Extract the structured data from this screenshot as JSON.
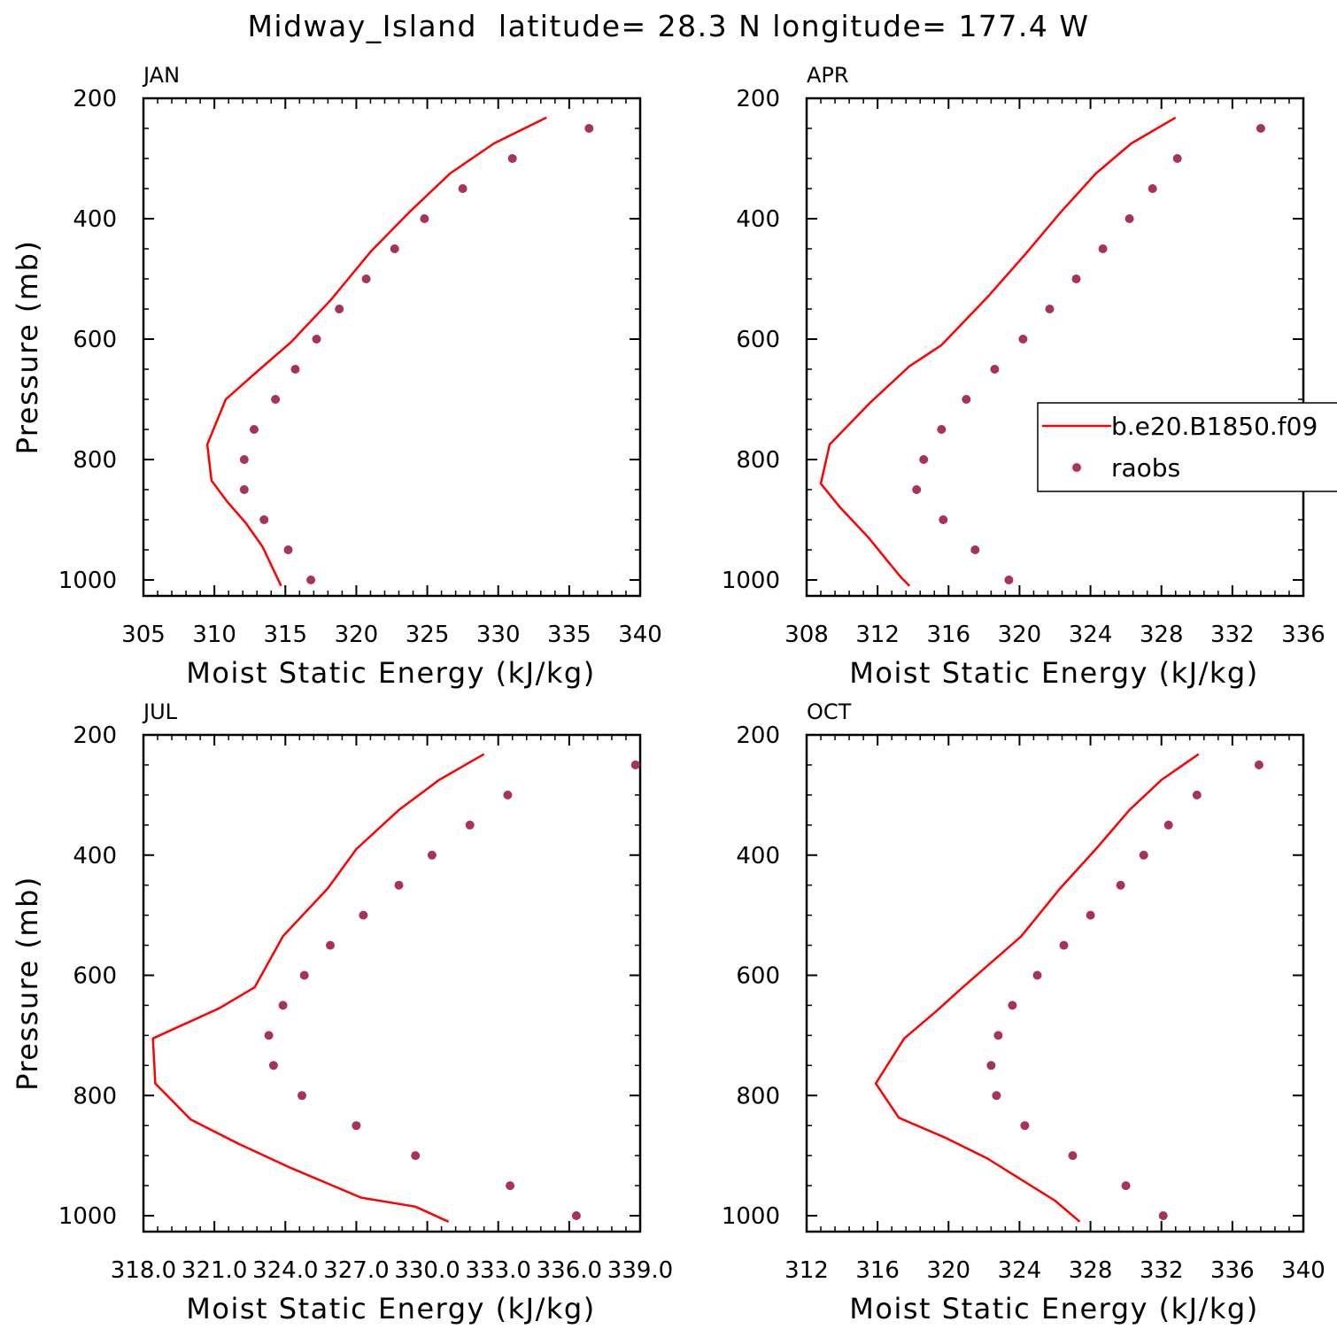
{
  "title": "Midway_Island  latitude= 28.3 N longitude= 177.4 W",
  "colors": {
    "model": "#ff0000",
    "obs": "#a8325e",
    "axis": "#000000"
  },
  "legend": {
    "placement": "right-middle of APR panel",
    "items": [
      "b.e20.B1850.f09",
      "raobs"
    ]
  },
  "chart_data": [
    {
      "type": "line",
      "panel_label": "JAN",
      "xlabel": "Moist Static Energy (kJ/kg)",
      "ylabel": "Pressure (mb)",
      "xlim": [
        305,
        340
      ],
      "xticks": [
        305,
        310,
        315,
        320,
        325,
        330,
        335,
        340
      ],
      "xticklabels": [
        "305",
        "310",
        "315",
        "320",
        "325",
        "330",
        "335",
        "340"
      ],
      "ylim": [
        1000,
        200
      ],
      "yticks": [
        200,
        400,
        600,
        800,
        1000
      ],
      "yticklabels": [
        "200",
        "400",
        "600",
        "800",
        "1000"
      ],
      "show_ylabel": true,
      "series": [
        {
          "name": "b.e20.B1850.f09",
          "type": "line",
          "x": [
            333.4,
            329.7,
            326.6,
            323.7,
            321.0,
            318.2,
            315.4,
            313.2,
            310.8,
            309.5,
            309.8,
            310.9,
            312.2,
            313.4,
            314.2,
            314.7
          ],
          "y": [
            232,
            275,
            325,
            390,
            455,
            535,
            605,
            650,
            700,
            775,
            835,
            870,
            905,
            945,
            985,
            1010
          ]
        },
        {
          "name": "raobs",
          "type": "scatter",
          "x": [
            336.4,
            331.0,
            327.5,
            324.8,
            322.7,
            320.7,
            318.8,
            317.2,
            315.7,
            314.3,
            312.8,
            312.1,
            312.1,
            313.5,
            315.2,
            316.8
          ],
          "y": [
            250,
            300,
            350,
            400,
            450,
            500,
            550,
            600,
            650,
            700,
            750,
            800,
            850,
            900,
            950,
            1000
          ]
        }
      ]
    },
    {
      "type": "line",
      "panel_label": "APR",
      "xlabel": "Moist Static Energy (kJ/kg)",
      "ylabel": "Pressure (mb)",
      "xlim": [
        308,
        336
      ],
      "xticks": [
        308,
        312,
        316,
        320,
        324,
        328,
        332,
        336
      ],
      "xticklabels": [
        "308",
        "312",
        "316",
        "320",
        "324",
        "328",
        "332",
        "336"
      ],
      "ylim": [
        1000,
        200
      ],
      "yticks": [
        200,
        400,
        600,
        800,
        1000
      ],
      "yticklabels": [
        "200",
        "400",
        "600",
        "800",
        "1000"
      ],
      "show_ylabel": false,
      "series": [
        {
          "name": "b.e20.B1850.f09",
          "type": "line",
          "x": [
            328.8,
            326.3,
            324.3,
            322.3,
            320.3,
            318.2,
            315.6,
            313.8,
            311.6,
            309.3,
            308.8,
            309.9,
            311.5,
            312.6,
            313.3,
            313.8
          ],
          "y": [
            232,
            275,
            325,
            390,
            460,
            530,
            610,
            645,
            705,
            775,
            840,
            880,
            930,
            970,
            995,
            1010
          ]
        },
        {
          "name": "raobs",
          "type": "scatter",
          "x": [
            333.6,
            328.9,
            327.5,
            326.2,
            324.7,
            323.2,
            321.7,
            320.2,
            318.6,
            317.0,
            315.6,
            314.6,
            314.2,
            315.7,
            317.5,
            319.4
          ],
          "y": [
            250,
            300,
            350,
            400,
            450,
            500,
            550,
            600,
            650,
            700,
            750,
            800,
            850,
            900,
            950,
            1000
          ]
        }
      ]
    },
    {
      "type": "line",
      "panel_label": "JUL",
      "xlabel": "Moist Static Energy (kJ/kg)",
      "ylabel": "Pressure (mb)",
      "xlim": [
        318.0,
        339.0
      ],
      "xticks": [
        318.0,
        321.0,
        324.0,
        327.0,
        330.0,
        333.0,
        336.0,
        339.0
      ],
      "xticklabels": [
        "318.0",
        "321.0",
        "324.0",
        "327.0",
        "330.0",
        "333.0",
        "336.0",
        "339.0"
      ],
      "ylim": [
        1000,
        200
      ],
      "yticks": [
        200,
        400,
        600,
        800,
        1000
      ],
      "yticklabels": [
        "200",
        "400",
        "600",
        "800",
        "1000"
      ],
      "show_ylabel": true,
      "series": [
        {
          "name": "b.e20.B1850.f09",
          "type": "line",
          "x": [
            332.4,
            330.5,
            328.8,
            327.0,
            325.8,
            323.9,
            322.7,
            321.2,
            318.4,
            318.5,
            320.0,
            322.0,
            324.2,
            327.2,
            329.5,
            330.9
          ],
          "y": [
            232,
            275,
            325,
            390,
            455,
            535,
            620,
            655,
            705,
            780,
            840,
            880,
            920,
            970,
            985,
            1010
          ]
        },
        {
          "name": "raobs",
          "type": "scatter",
          "x": [
            338.8,
            333.4,
            331.8,
            330.2,
            328.8,
            327.3,
            325.9,
            324.8,
            323.9,
            323.3,
            323.5,
            324.7,
            327.0,
            329.5,
            333.5,
            336.3
          ],
          "y": [
            250,
            300,
            350,
            400,
            450,
            500,
            550,
            600,
            650,
            700,
            750,
            800,
            850,
            900,
            950,
            1000
          ]
        }
      ]
    },
    {
      "type": "line",
      "panel_label": "OCT",
      "xlabel": "Moist Static Energy (kJ/kg)",
      "ylabel": "Pressure (mb)",
      "xlim": [
        312,
        340
      ],
      "xticks": [
        312,
        316,
        320,
        324,
        328,
        332,
        336,
        340
      ],
      "xticklabels": [
        "312",
        "316",
        "320",
        "324",
        "328",
        "332",
        "336",
        "340"
      ],
      "ylim": [
        1000,
        200
      ],
      "yticks": [
        200,
        400,
        600,
        800,
        1000
      ],
      "yticklabels": [
        "200",
        "400",
        "600",
        "800",
        "1000"
      ],
      "show_ylabel": false,
      "series": [
        {
          "name": "b.e20.B1850.f09",
          "type": "line",
          "x": [
            334.1,
            332.0,
            330.2,
            328.3,
            326.3,
            324.1,
            320.8,
            319.3,
            317.5,
            315.9,
            317.2,
            319.8,
            322.2,
            324.1,
            326.0,
            327.4
          ],
          "y": [
            232,
            275,
            325,
            390,
            455,
            535,
            620,
            660,
            705,
            780,
            837,
            870,
            905,
            940,
            975,
            1010
          ]
        },
        {
          "name": "raobs",
          "type": "scatter",
          "x": [
            337.5,
            334.0,
            332.4,
            331.0,
            329.7,
            328.0,
            326.5,
            325.0,
            323.6,
            322.8,
            322.4,
            322.7,
            324.3,
            327.0,
            330.0,
            332.1
          ],
          "y": [
            250,
            300,
            350,
            400,
            450,
            500,
            550,
            600,
            650,
            700,
            750,
            800,
            850,
            900,
            950,
            1000
          ]
        }
      ]
    }
  ]
}
